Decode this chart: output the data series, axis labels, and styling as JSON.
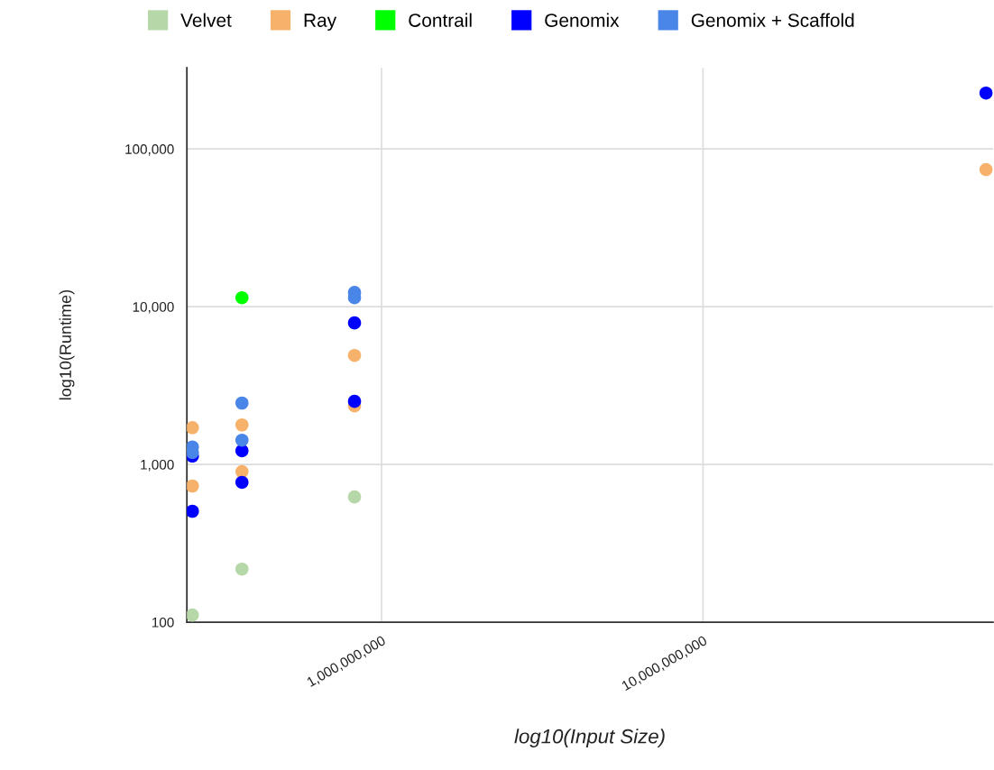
{
  "chart_data": {
    "type": "scatter",
    "xlabel": "log10(Input Size)",
    "ylabel": "log10(Runtime)",
    "log": "xy",
    "grid": true,
    "legend": "top",
    "marker": "circle",
    "xlim": [
      248000000,
      79800000000
    ],
    "xticks": [
      {
        "value": 1000000000,
        "label": "1,000,000,000"
      },
      {
        "value": 10000000000,
        "label": "10,000,000,000"
      }
    ],
    "ylim": [
      100,
      327000
    ],
    "yticks": [
      {
        "value": 100,
        "label": "100"
      },
      {
        "value": 1000,
        "label": "1,000"
      },
      {
        "value": 10000,
        "label": "10,000"
      },
      {
        "value": 100000,
        "label": "100,000"
      }
    ],
    "series": [
      {
        "name": "Velvet",
        "color": "#b6d7a8",
        "x": [
          258000000,
          368000000,
          824000000
        ],
        "values": [
          111,
          217,
          622
        ]
      },
      {
        "name": "Ray",
        "color": "#f6b26b",
        "x": [
          258000000,
          258000000,
          368000000,
          368000000,
          824000000,
          824000000,
          75900000000
        ],
        "values": [
          1710,
          730,
          1780,
          900,
          4910,
          2350,
          74000
        ]
      },
      {
        "name": "Contrail",
        "color": "#00ff00",
        "x": [
          368000000
        ],
        "values": [
          11400
        ]
      },
      {
        "name": "Genomix",
        "color": "#0000ff",
        "x": [
          258000000,
          258000000,
          368000000,
          368000000,
          824000000,
          824000000,
          75900000000
        ],
        "values": [
          1130,
          505,
          1220,
          770,
          7890,
          2510,
          226000
        ]
      },
      {
        "name": "Genomix + Scaffold",
        "color": "#4a86e8",
        "x": [
          258000000,
          258000000,
          368000000,
          368000000,
          824000000,
          824000000
        ],
        "values": [
          1290,
          1190,
          2450,
          1425,
          12300,
          11400
        ]
      }
    ]
  }
}
